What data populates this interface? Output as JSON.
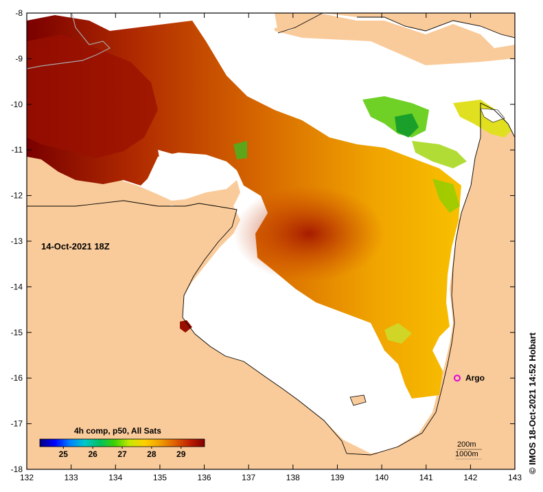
{
  "map": {
    "date_label": "14-Oct-2021 18Z",
    "x_ticks": [
      "132",
      "133",
      "134",
      "135",
      "136",
      "137",
      "138",
      "139",
      "140",
      "141",
      "142",
      "143"
    ],
    "y_ticks": [
      "-8",
      "-9",
      "-10",
      "-11",
      "-12",
      "-13",
      "-14",
      "-15",
      "-16",
      "-17",
      "-18"
    ],
    "x_range": [
      132,
      143
    ],
    "y_range": [
      -18,
      -8
    ],
    "colorbar": {
      "title": "4h comp, p50, All Sats",
      "tick_labels": [
        "25",
        "26",
        "27",
        "28",
        "29"
      ],
      "tick_values": [
        25,
        26,
        27,
        28,
        29
      ],
      "range": [
        24.2,
        29.8
      ],
      "colors": [
        "#00007f",
        "#0000ff",
        "#0080ff",
        "#00c8c8",
        "#00c060",
        "#40d000",
        "#c8e800",
        "#ffd000",
        "#f0a000",
        "#e06000",
        "#c02000",
        "#800000"
      ]
    },
    "argo": {
      "label": "Argo",
      "lon": 141.7,
      "lat": -16.0,
      "color": "#e000e0"
    },
    "contours": [
      "200m",
      "1000m"
    ],
    "credit": "© IMOS 18-Oct-2021 14:52 Hobart",
    "colors": {
      "land": "#facb9a",
      "water": "#ffffff",
      "frame": "#000000"
    }
  }
}
